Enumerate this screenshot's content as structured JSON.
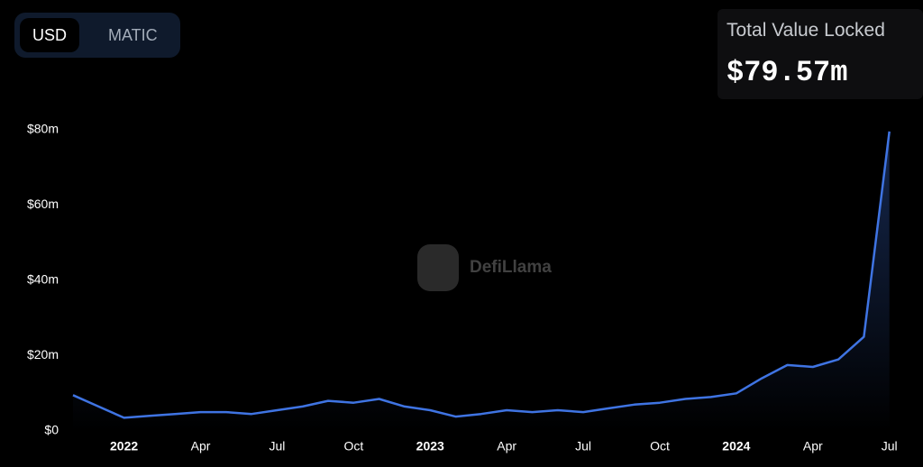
{
  "toggle": {
    "options": [
      "USD",
      "MATIC"
    ]
  },
  "summary": {
    "label": "Total Value Locked",
    "value": "$79.57m"
  },
  "watermark": "DefiLlama",
  "chart_data": {
    "type": "line",
    "x": [
      "2021-11",
      "2021-12",
      "2022-01",
      "2022-02",
      "2022-03",
      "2022-04",
      "2022-05",
      "2022-06",
      "2022-07",
      "2022-08",
      "2022-09",
      "2022-10",
      "2022-11",
      "2022-12",
      "2023-01",
      "2023-02",
      "2023-03",
      "2023-04",
      "2023-05",
      "2023-06",
      "2023-07",
      "2023-08",
      "2023-09",
      "2023-10",
      "2023-11",
      "2023-12",
      "2024-01",
      "2024-02",
      "2024-03",
      "2024-04",
      "2024-05",
      "2024-06",
      "2024-07"
    ],
    "values": [
      9.5,
      6.5,
      3.5,
      4,
      4.5,
      5,
      5,
      4.5,
      5.5,
      6.5,
      8,
      7.5,
      8.5,
      6.5,
      5.5,
      3.8,
      4.5,
      5.5,
      5,
      5.5,
      5,
      6,
      7,
      7.5,
      8.5,
      9,
      10,
      14,
      17.5,
      17,
      19,
      25,
      79.57
    ],
    "color": "#3f74e3",
    "xlim": [
      "2021-11",
      "2024-08"
    ],
    "xticks": [
      {
        "value": "2022-01",
        "label": "2022"
      },
      {
        "value": "2022-04",
        "label": "Apr"
      },
      {
        "value": "2022-07",
        "label": "Jul"
      },
      {
        "value": "2022-10",
        "label": "Oct"
      },
      {
        "value": "2023-01",
        "label": "2023"
      },
      {
        "value": "2023-04",
        "label": "Apr"
      },
      {
        "value": "2023-07",
        "label": "Jul"
      },
      {
        "value": "2023-10",
        "label": "Oct"
      },
      {
        "value": "2024-01",
        "label": "2024"
      },
      {
        "value": "2024-04",
        "label": "Apr"
      },
      {
        "value": "2024-07",
        "label": "Jul"
      }
    ],
    "ylim": [
      0,
      80
    ],
    "yticks": [
      {
        "value": 0,
        "label": "$0"
      },
      {
        "value": 20,
        "label": "$20m"
      },
      {
        "value": 40,
        "label": "$40m"
      },
      {
        "value": 60,
        "label": "$60m"
      },
      {
        "value": 80,
        "label": "$80m"
      }
    ],
    "grid": false
  }
}
